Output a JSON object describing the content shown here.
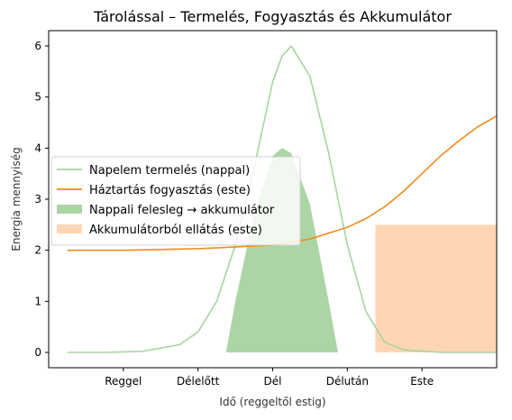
{
  "chart_data": {
    "type": "line",
    "title": "Tárolással – Termelés, Fogyasztás és Akkumulátor",
    "xlabel": "Idő (reggeltől estig)",
    "ylabel": "Energia mennyiség",
    "xlim": [
      0,
      24
    ],
    "ylim": [
      -0.3,
      6.3
    ],
    "x_ticks": [
      {
        "value": 4,
        "label": "Reggel"
      },
      {
        "value": 8,
        "label": "Délelőtt"
      },
      {
        "value": 12,
        "label": "Dél"
      },
      {
        "value": 16,
        "label": "Délután"
      },
      {
        "value": 20,
        "label": "Este"
      }
    ],
    "y_ticks": [
      0,
      1,
      2,
      3,
      4,
      5,
      6
    ],
    "grid": false,
    "legend_position": "center-left",
    "series": [
      {
        "name": "Napelem termelés (nappal)",
        "kind": "line",
        "color": "#a6d4a0",
        "x": [
          1,
          3,
          5,
          7,
          8,
          9,
          10,
          11,
          12,
          12.5,
          13,
          14,
          15,
          16,
          17,
          18,
          19,
          21,
          23,
          24
        ],
        "y": [
          0,
          0,
          0.02,
          0.15,
          0.4,
          1.0,
          2.1,
          3.6,
          5.3,
          5.8,
          6.0,
          5.4,
          3.9,
          2.1,
          0.8,
          0.2,
          0.05,
          0,
          0,
          0
        ]
      },
      {
        "name": "Háztartás fogyasztás (este)",
        "kind": "line",
        "color": "#f28a1e",
        "x": [
          1,
          4,
          8,
          12,
          14,
          16,
          17,
          18,
          19,
          20,
          21,
          22,
          23,
          24
        ],
        "y": [
          2.0,
          2.0,
          2.03,
          2.1,
          2.22,
          2.45,
          2.62,
          2.85,
          3.15,
          3.5,
          3.85,
          4.15,
          4.42,
          4.63
        ]
      },
      {
        "name": "Nappali felesleg → akkumulátor",
        "kind": "area",
        "color": "#acd5a6",
        "x": [
          9.5,
          10,
          11,
          12,
          12.5,
          13,
          14,
          15,
          15.5
        ],
        "y": [
          0,
          1.0,
          2.7,
          3.85,
          4.0,
          3.9,
          2.9,
          1.0,
          0
        ]
      },
      {
        "name": "Akkumulátorból ellátás (este)",
        "kind": "area",
        "color": "#ffd6b5",
        "x": [
          17.5,
          24
        ],
        "y": [
          2.5,
          2.5
        ]
      }
    ]
  }
}
